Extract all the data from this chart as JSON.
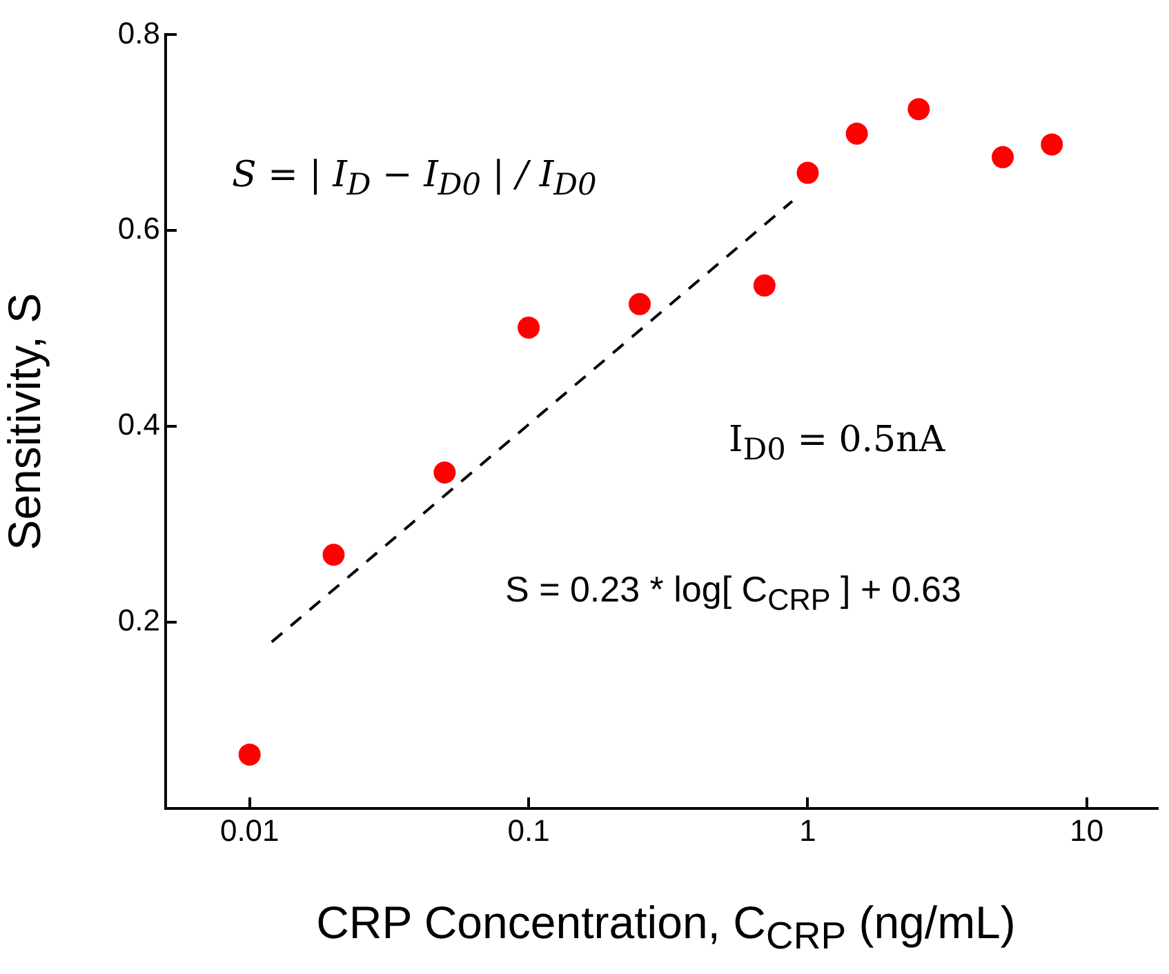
{
  "chart_data": {
    "type": "scatter",
    "xlabel": "CRP Concentration, C$_{CRP}$ (ng/mL)",
    "ylabel": "Sensitivity, S",
    "log": "x",
    "xlim": [
      0.005,
      18
    ],
    "xticks": [
      0.01,
      0.1,
      1,
      10
    ],
    "ylim": [
      0.01,
      0.8
    ],
    "yticks": [
      0.2,
      0.4,
      0.6,
      0.8
    ],
    "series": [
      {
        "color": "#ff0000",
        "marker": "circle",
        "x": [
          0.01,
          0.02,
          0.05,
          0.1,
          0.25,
          0.7,
          1,
          1.5,
          2.5,
          5,
          7.5
        ],
        "values": [
          0.065,
          0.269,
          0.353,
          0.501,
          0.525,
          0.544,
          0.659,
          0.699,
          0.724,
          0.675,
          0.688
        ]
      },
      {
        "type": "line",
        "color": "#000000",
        "line_style": "dashed",
        "marker": "none",
        "x": [
          0.012,
          0.88
        ],
        "values": [
          0.18,
          0.63
        ]
      }
    ],
    "annotations": [
      "S = | I$_{D}$ − I$_{D0}$ | / I$_{D0}$",
      "I$_{D0}$ = 0.5nA",
      "S = 0.23 * log[ C$_{CRP}$ ] + 0.63"
    ]
  }
}
